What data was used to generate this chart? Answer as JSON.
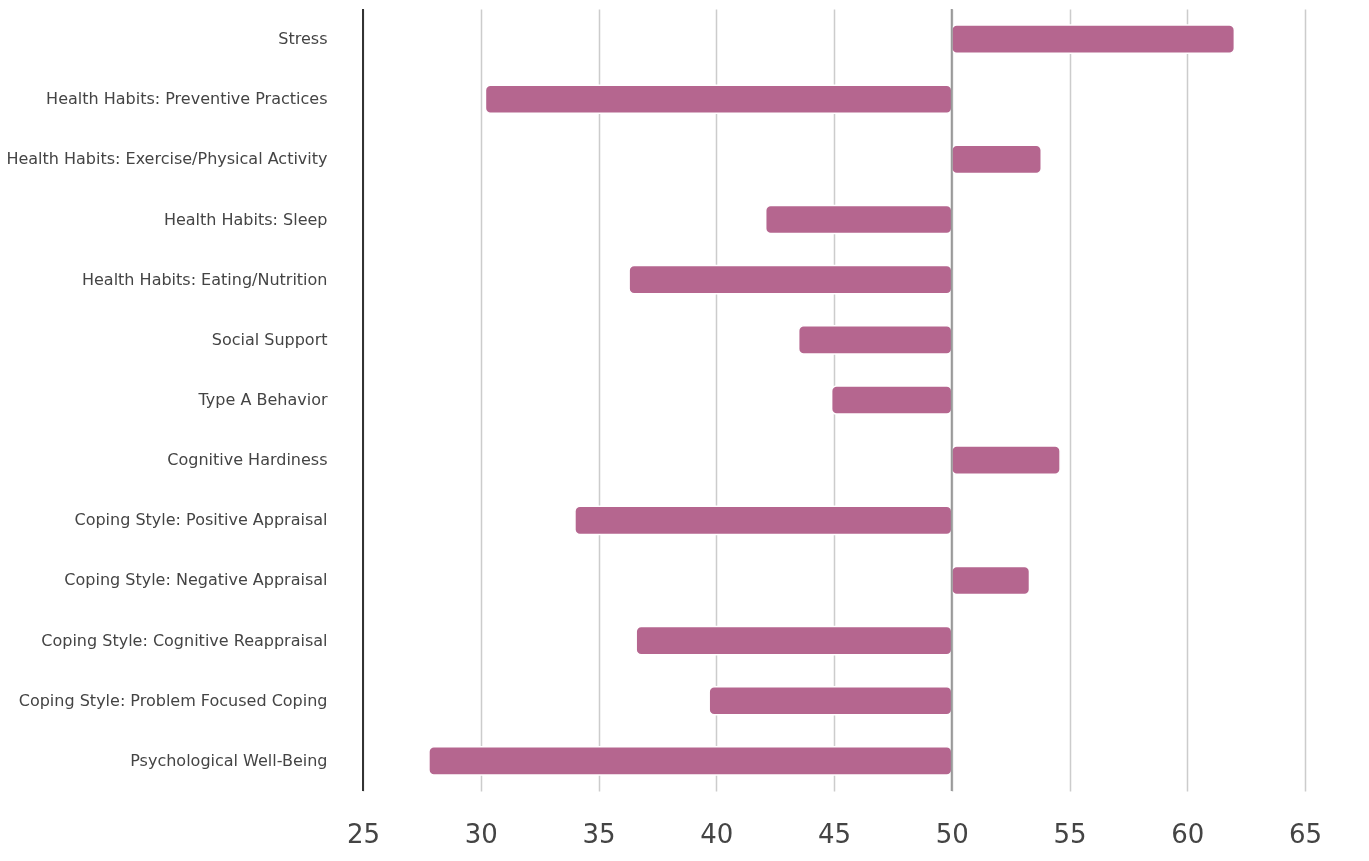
{
  "chart_data": {
    "type": "bar",
    "orientation": "horizontal",
    "categories": [
      "Stress",
      "Health Habits: Preventive Practices",
      "Health Habits: Exercise/Physical Activity",
      "Health Habits: Sleep",
      "Health Habits: Eating/Nutrition",
      "Social Support",
      "Type A Behavior",
      "Cognitive Hardiness",
      "Coping Style: Positive Appraisal",
      "Coping Style: Negative Appraisal",
      "Coping Style: Cognitive Reappraisal",
      "Coping Style: Problem Focused Coping",
      "Psychological Well-Being"
    ],
    "values": [
      12,
      -19.8,
      3.8,
      -7.9,
      -13.7,
      -6.5,
      -5.1,
      4.6,
      -16,
      3.3,
      -13.4,
      -10.3,
      -22.2
    ],
    "base": [
      50,
      50,
      50,
      50,
      50,
      50,
      50,
      50,
      50,
      50,
      50,
      50,
      50
    ],
    "color": "#b5668f",
    "xlim": [
      25,
      65
    ],
    "xticks": [
      25,
      30,
      35,
      40,
      45,
      50,
      55,
      60,
      65
    ],
    "grid": "x",
    "ref_lines": [
      {
        "axis": "x",
        "value": 50,
        "color": "#999999"
      }
    ]
  }
}
